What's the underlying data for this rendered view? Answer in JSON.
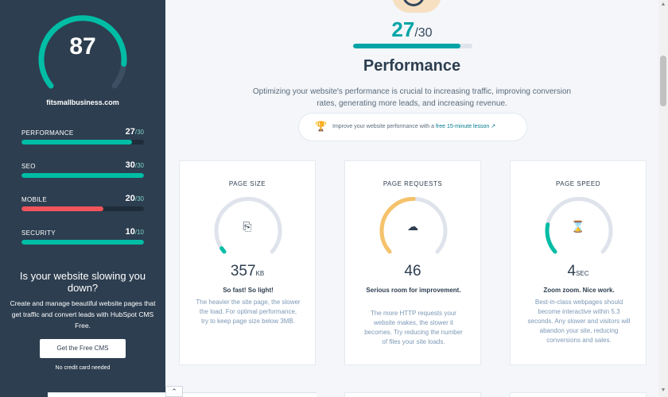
{
  "sidebar": {
    "score": "87",
    "site": "fitsmallbusiness.com",
    "metrics": [
      {
        "label": "PERFORMANCE",
        "value": "27",
        "of": "/30",
        "fraction": 0.9,
        "color": "#00bda5"
      },
      {
        "label": "SEO",
        "value": "30",
        "of": "/30",
        "fraction": 1.0,
        "color": "#00bda5"
      },
      {
        "label": "MOBILE",
        "value": "20",
        "of": "/30",
        "fraction": 0.667,
        "color": "#f2545b"
      },
      {
        "label": "SECURITY",
        "value": "10",
        "of": "/10",
        "fraction": 1.0,
        "color": "#00bda5"
      }
    ],
    "promo_title": "Is your website slowing you down?",
    "promo_text": "Create and manage beautiful website pages that get traffic and convert leads with HubSpot CMS Free.",
    "cta_label": "Get the Free CMS",
    "no_cc": "No credit card needed",
    "score_fraction": 0.87
  },
  "main": {
    "score": "27",
    "of": "/30",
    "fraction": 0.9,
    "title": "Performance",
    "description": "Optimizing your website's performance is crucial to increasing traffic, improving conversion rates, generating more leads, and increasing revenue.",
    "lesson_prefix": "Improve your website performance with a ",
    "lesson_link": "free 15-minute lesson",
    "cards": [
      {
        "title": "PAGE SIZE",
        "value": "357",
        "unit": "KB",
        "verdict": "So fast! So light!",
        "desc": "The heavier the site page, the slower the load. For optimal performance, try to keep page size below 3MB.",
        "icon": "file-code-icon",
        "glyph": "⎘",
        "fraction": 0.03,
        "color": "#00bda5"
      },
      {
        "title": "PAGE REQUESTS",
        "value": "46",
        "unit": "",
        "verdict": "Serious room for improvement.",
        "desc": "The more HTTP requests your website makes, the slower it becomes. Try reducing the number of files your site loads.",
        "icon": "cloud-download-icon",
        "glyph": "☁",
        "fraction": 0.5,
        "color": "#f5c26b"
      },
      {
        "title": "PAGE SPEED",
        "value": "4",
        "unit": "SEC",
        "verdict": "Zoom zoom. Nice work.",
        "desc": "Best-in-class webpages should become interactive within 5.3 seconds. Any slower and visitors will abandon your site, reducing conversions and sales.",
        "icon": "hourglass-icon",
        "glyph": "⌛",
        "fraction": 0.2,
        "color": "#00bda5"
      }
    ]
  }
}
